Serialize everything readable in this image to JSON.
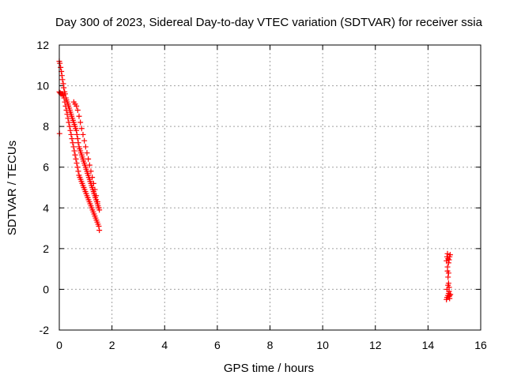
{
  "chart_data": {
    "type": "scatter",
    "title": "Day 300 of 2023, Sidereal Day-to-day VTEC variation (SDTVAR) for receiver ssia",
    "xlabel": "GPS time / hours",
    "ylabel": "SDTVAR / TECUs",
    "xlim": [
      0,
      16
    ],
    "ylim": [
      -2,
      12
    ],
    "xticks": [
      0,
      2,
      4,
      6,
      8,
      10,
      12,
      14,
      16
    ],
    "yticks": [
      -2,
      0,
      2,
      4,
      6,
      8,
      10,
      12
    ],
    "grid": true,
    "legend": "none",
    "marker": "+",
    "color": "#ff0000",
    "series": [
      {
        "x": [
          0.0,
          0.02,
          0.05,
          0.08,
          0.1,
          0.12,
          0.15,
          0.17,
          0.2,
          0.22,
          0.25,
          0.27,
          0.3,
          0.33,
          0.35,
          0.38,
          0.4,
          0.42,
          0.45,
          0.47,
          0.5,
          0.52,
          0.55,
          0.57,
          0.6,
          0.62,
          0.65,
          0.67,
          0.7,
          0.72,
          0.75,
          0.77,
          0.8,
          0.82,
          0.85,
          0.87,
          0.9,
          0.92,
          0.95,
          0.97,
          1.0,
          1.02,
          1.05,
          1.07,
          1.1,
          1.12,
          1.15,
          1.17,
          1.2,
          1.22,
          1.25,
          1.27,
          1.3,
          1.32,
          1.35,
          1.37,
          1.4,
          1.42,
          1.45,
          1.47,
          1.5,
          1.52,
          0.0,
          0.03,
          0.06,
          0.09,
          0.12,
          0.15,
          0.18,
          0.21,
          0.24,
          0.27,
          0.3,
          0.33,
          0.36,
          0.39,
          0.42,
          0.45,
          0.48,
          0.51,
          0.54,
          0.57,
          0.6,
          0.63,
          0.66,
          0.69,
          0.72,
          0.75,
          0.78,
          0.81,
          0.84,
          0.87,
          0.9,
          0.93,
          0.96,
          0.99,
          1.02,
          1.05,
          1.08,
          1.11,
          1.14,
          1.17,
          1.2,
          1.23,
          1.26,
          1.29,
          1.32,
          1.35,
          1.38,
          1.41,
          1.44,
          1.47,
          1.5,
          1.52,
          0.55,
          0.6,
          0.65,
          0.7,
          0.75,
          0.8,
          0.85,
          0.9,
          0.95,
          1.0,
          1.05,
          1.1,
          1.15,
          1.2,
          1.25,
          1.3,
          1.35,
          1.4,
          1.45,
          1.5,
          0.01,
          14.7,
          14.72,
          14.74,
          14.76,
          14.78,
          14.8,
          14.82,
          14.84,
          14.7,
          14.72,
          14.75,
          14.78,
          14.8,
          14.82,
          14.85,
          14.74,
          14.76,
          14.78,
          14.8,
          14.72,
          14.76,
          14.8,
          14.74,
          14.78,
          14.82
        ],
        "y": [
          11.2,
          11.1,
          10.9,
          10.7,
          10.5,
          10.3,
          10.1,
          9.9,
          9.7,
          9.6,
          9.4,
          9.3,
          9.2,
          9.1,
          9.0,
          8.9,
          8.8,
          8.7,
          8.6,
          8.5,
          8.4,
          8.3,
          8.2,
          8.1,
          8.0,
          7.9,
          7.8,
          7.6,
          7.4,
          7.2,
          7.0,
          6.9,
          6.8,
          6.7,
          6.6,
          6.5,
          6.4,
          6.3,
          6.2,
          6.1,
          6.0,
          5.9,
          5.8,
          5.7,
          5.6,
          5.5,
          5.4,
          5.3,
          5.2,
          5.1,
          5.0,
          4.9,
          4.8,
          4.7,
          4.6,
          4.5,
          4.4,
          4.3,
          4.2,
          4.1,
          4.0,
          3.9,
          9.7,
          9.65,
          9.6,
          9.6,
          9.6,
          9.55,
          9.4,
          9.2,
          9.0,
          8.8,
          8.6,
          8.4,
          8.2,
          8.0,
          7.8,
          7.6,
          7.4,
          7.2,
          7.0,
          6.8,
          6.6,
          6.4,
          6.2,
          6.0,
          5.8,
          5.6,
          5.5,
          5.4,
          5.3,
          5.2,
          5.1,
          5.0,
          4.9,
          4.8,
          4.7,
          4.6,
          4.5,
          4.4,
          4.3,
          4.2,
          4.1,
          4.0,
          3.9,
          3.8,
          3.7,
          3.6,
          3.5,
          3.4,
          3.3,
          3.2,
          3.1,
          2.9,
          9.2,
          9.1,
          9.0,
          8.8,
          8.5,
          8.2,
          7.9,
          7.6,
          7.3,
          7.0,
          6.7,
          6.4,
          6.1,
          5.8,
          5.5,
          5.2,
          4.9,
          4.6,
          4.3,
          4.0,
          7.65,
          1.4,
          1.6,
          1.75,
          1.5,
          1.3,
          1.45,
          1.6,
          1.7,
          -0.5,
          -0.4,
          -0.3,
          -0.2,
          -0.35,
          -0.45,
          -0.25,
          0.9,
          0.6,
          0.3,
          0.1,
          0.0,
          0.2,
          -0.1,
          1.1,
          0.8,
          -0.3
        ]
      }
    ]
  }
}
